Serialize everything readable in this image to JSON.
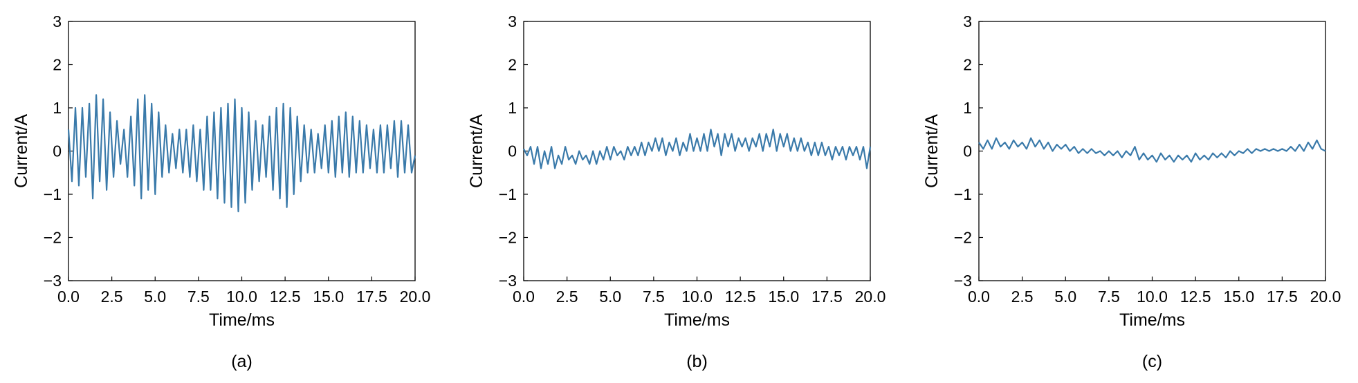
{
  "chart_data": [
    {
      "type": "line",
      "panel": "(a)",
      "xlabel": "Time/ms",
      "ylabel": "Current/A",
      "xlim": [
        0,
        20
      ],
      "ylim": [
        -3,
        3
      ],
      "xticks": [
        "0.0",
        "2.5",
        "5.0",
        "7.5",
        "10.0",
        "12.5",
        "15.0",
        "17.5",
        "20.0"
      ],
      "yticks": [
        "−3",
        "−2",
        "−1",
        "0",
        "1",
        "2",
        "3"
      ],
      "grid": false,
      "series": [
        {
          "color": "#3a7aaa",
          "x": [
            0.0,
            0.2,
            0.4,
            0.6,
            0.8,
            1.0,
            1.2,
            1.4,
            1.6,
            1.8,
            2.0,
            2.2,
            2.4,
            2.6,
            2.8,
            3.0,
            3.2,
            3.4,
            3.6,
            3.8,
            4.0,
            4.2,
            4.4,
            4.6,
            4.8,
            5.0,
            5.2,
            5.4,
            5.6,
            5.8,
            6.0,
            6.2,
            6.4,
            6.6,
            6.8,
            7.0,
            7.2,
            7.4,
            7.6,
            7.8,
            8.0,
            8.2,
            8.4,
            8.6,
            8.8,
            9.0,
            9.2,
            9.4,
            9.6,
            9.8,
            10.0,
            10.2,
            10.4,
            10.6,
            10.8,
            11.0,
            11.2,
            11.4,
            11.6,
            11.8,
            12.0,
            12.2,
            12.4,
            12.6,
            12.8,
            13.0,
            13.2,
            13.4,
            13.6,
            13.8,
            14.0,
            14.2,
            14.4,
            14.6,
            14.8,
            15.0,
            15.2,
            15.4,
            15.6,
            15.8,
            16.0,
            16.2,
            16.4,
            16.6,
            16.8,
            17.0,
            17.2,
            17.4,
            17.6,
            17.8,
            18.0,
            18.2,
            18.4,
            18.6,
            18.8,
            19.0,
            19.2,
            19.4,
            19.6,
            19.8,
            20.0
          ],
          "y": [
            0.5,
            -0.7,
            1.0,
            -0.8,
            1.0,
            -0.6,
            1.1,
            -1.1,
            1.3,
            -0.7,
            1.2,
            -0.9,
            0.9,
            -0.6,
            0.7,
            -0.3,
            0.5,
            -0.6,
            0.8,
            -0.8,
            1.2,
            -1.1,
            1.3,
            -0.9,
            1.1,
            -1.0,
            0.9,
            -0.6,
            0.6,
            -0.5,
            0.4,
            -0.4,
            0.5,
            -0.5,
            0.5,
            -0.6,
            0.6,
            -0.7,
            0.5,
            -0.9,
            0.8,
            -0.9,
            0.9,
            -1.1,
            1.0,
            -1.2,
            1.1,
            -1.3,
            1.2,
            -1.4,
            1.0,
            -1.2,
            0.9,
            -0.9,
            0.7,
            -0.7,
            0.6,
            -0.6,
            0.8,
            -0.9,
            1.0,
            -1.1,
            1.1,
            -1.3,
            1.0,
            -1.0,
            0.8,
            -0.7,
            0.6,
            -0.5,
            0.5,
            -0.5,
            0.4,
            -0.4,
            0.6,
            -0.5,
            0.7,
            -0.6,
            0.8,
            -0.5,
            0.9,
            -0.6,
            0.8,
            -0.5,
            0.7,
            -0.5,
            0.6,
            -0.4,
            0.5,
            -0.5,
            0.6,
            -0.5,
            0.6,
            -0.4,
            0.7,
            -0.6,
            0.7,
            -0.5,
            0.6,
            -0.5,
            -0.1
          ]
        }
      ]
    },
    {
      "type": "line",
      "panel": "(b)",
      "xlabel": "Time/ms",
      "ylabel": "Current/A",
      "xlim": [
        0,
        20
      ],
      "ylim": [
        -3,
        3
      ],
      "xticks": [
        "0.0",
        "2.5",
        "5.0",
        "7.5",
        "10.0",
        "12.5",
        "15.0",
        "17.5",
        "20.0"
      ],
      "yticks": [
        "−3",
        "−2",
        "−1",
        "0",
        "1",
        "2",
        "3"
      ],
      "grid": false,
      "series": [
        {
          "color": "#3a7aaa",
          "x": [
            0.0,
            0.2,
            0.4,
            0.6,
            0.8,
            1.0,
            1.2,
            1.4,
            1.6,
            1.8,
            2.0,
            2.2,
            2.4,
            2.6,
            2.8,
            3.0,
            3.2,
            3.4,
            3.6,
            3.8,
            4.0,
            4.2,
            4.4,
            4.6,
            4.8,
            5.0,
            5.2,
            5.4,
            5.6,
            5.8,
            6.0,
            6.2,
            6.4,
            6.6,
            6.8,
            7.0,
            7.2,
            7.4,
            7.6,
            7.8,
            8.0,
            8.2,
            8.4,
            8.6,
            8.8,
            9.0,
            9.2,
            9.4,
            9.6,
            9.8,
            10.0,
            10.2,
            10.4,
            10.6,
            10.8,
            11.0,
            11.2,
            11.4,
            11.6,
            11.8,
            12.0,
            12.2,
            12.4,
            12.6,
            12.8,
            13.0,
            13.2,
            13.4,
            13.6,
            13.8,
            14.0,
            14.2,
            14.4,
            14.6,
            14.8,
            15.0,
            15.2,
            15.4,
            15.6,
            15.8,
            16.0,
            16.2,
            16.4,
            16.6,
            16.8,
            17.0,
            17.2,
            17.4,
            17.6,
            17.8,
            18.0,
            18.2,
            18.4,
            18.6,
            18.8,
            19.0,
            19.2,
            19.4,
            19.6,
            19.8,
            20.0
          ],
          "y": [
            0.05,
            -0.1,
            0.1,
            -0.3,
            0.1,
            -0.4,
            0.0,
            -0.3,
            0.1,
            -0.4,
            -0.1,
            -0.3,
            0.1,
            -0.2,
            -0.1,
            -0.3,
            0.0,
            -0.2,
            -0.1,
            -0.3,
            0.0,
            -0.3,
            0.0,
            -0.2,
            0.1,
            -0.2,
            0.1,
            -0.1,
            0.0,
            -0.2,
            0.1,
            -0.1,
            0.1,
            -0.1,
            0.2,
            -0.1,
            0.2,
            0.0,
            0.3,
            0.0,
            0.3,
            -0.1,
            0.2,
            0.0,
            0.3,
            -0.1,
            0.2,
            0.0,
            0.4,
            0.0,
            0.3,
            0.0,
            0.4,
            0.0,
            0.5,
            0.1,
            0.4,
            -0.1,
            0.4,
            0.1,
            0.4,
            0.0,
            0.3,
            0.1,
            0.3,
            0.0,
            0.3,
            0.1,
            0.4,
            0.0,
            0.4,
            0.1,
            0.5,
            0.0,
            0.4,
            0.1,
            0.4,
            0.0,
            0.3,
            0.0,
            0.3,
            0.0,
            0.2,
            -0.1,
            0.2,
            -0.1,
            0.2,
            -0.1,
            0.1,
            -0.2,
            0.1,
            -0.1,
            0.1,
            -0.2,
            0.1,
            -0.1,
            0.1,
            -0.2,
            0.1,
            -0.4,
            0.1
          ]
        }
      ]
    },
    {
      "type": "line",
      "panel": "(c)",
      "xlabel": "Time/ms",
      "ylabel": "Current/A",
      "xlim": [
        0,
        20
      ],
      "ylim": [
        -3,
        3
      ],
      "xticks": [
        "0.0",
        "2.5",
        "5.0",
        "7.5",
        "10.0",
        "12.5",
        "15.0",
        "17.5",
        "20.0"
      ],
      "yticks": [
        "−3",
        "−2",
        "−1",
        "0",
        "1",
        "2",
        "3"
      ],
      "grid": false,
      "series": [
        {
          "color": "#3a7aaa",
          "x": [
            0.0,
            0.25,
            0.5,
            0.75,
            1.0,
            1.25,
            1.5,
            1.75,
            2.0,
            2.25,
            2.5,
            2.75,
            3.0,
            3.25,
            3.5,
            3.75,
            4.0,
            4.25,
            4.5,
            4.75,
            5.0,
            5.25,
            5.5,
            5.75,
            6.0,
            6.25,
            6.5,
            6.75,
            7.0,
            7.25,
            7.5,
            7.75,
            8.0,
            8.25,
            8.5,
            8.75,
            9.0,
            9.25,
            9.5,
            9.75,
            10.0,
            10.25,
            10.5,
            10.75,
            11.0,
            11.25,
            11.5,
            11.75,
            12.0,
            12.25,
            12.5,
            12.75,
            13.0,
            13.25,
            13.5,
            13.75,
            14.0,
            14.25,
            14.5,
            14.75,
            15.0,
            15.25,
            15.5,
            15.75,
            16.0,
            16.25,
            16.5,
            16.75,
            17.0,
            17.25,
            17.5,
            17.75,
            18.0,
            18.25,
            18.5,
            18.75,
            19.0,
            19.25,
            19.5,
            19.75,
            20.0
          ],
          "y": [
            0.2,
            0.05,
            0.25,
            0.05,
            0.3,
            0.1,
            0.2,
            0.05,
            0.25,
            0.1,
            0.2,
            0.05,
            0.3,
            0.1,
            0.25,
            0.05,
            0.2,
            0.0,
            0.15,
            0.05,
            0.15,
            0.0,
            0.1,
            -0.05,
            0.05,
            -0.05,
            0.05,
            -0.05,
            0.0,
            -0.1,
            0.0,
            -0.1,
            0.0,
            -0.15,
            0.0,
            -0.1,
            0.1,
            -0.2,
            -0.05,
            -0.2,
            -0.1,
            -0.25,
            -0.05,
            -0.2,
            -0.1,
            -0.25,
            -0.1,
            -0.2,
            -0.1,
            -0.25,
            -0.05,
            -0.2,
            -0.1,
            -0.2,
            -0.05,
            -0.15,
            -0.05,
            -0.15,
            0.0,
            -0.1,
            0.0,
            -0.05,
            0.05,
            -0.05,
            0.05,
            0.0,
            0.05,
            0.0,
            0.05,
            0.0,
            0.05,
            0.0,
            0.1,
            0.0,
            0.15,
            0.0,
            0.2,
            0.05,
            0.25,
            0.05,
            0.0
          ]
        }
      ]
    }
  ]
}
